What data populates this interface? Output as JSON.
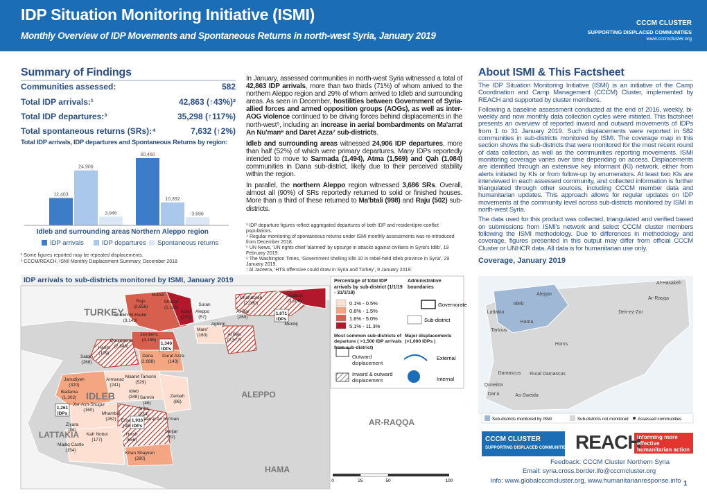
{
  "header": {
    "title": "IDP Situation Monitoring Initiative (ISMI)",
    "subtitle": "Monthly Overview of IDP Movements and Spontaneous Returns in north-west Syria, January 2019",
    "logo_name": "CCCM CLUSTER",
    "logo_tagline": "SUPPORTING DISPLACED COMMUNITIES",
    "logo_url": "www.cccmcluster.org"
  },
  "summary": {
    "heading": "Summary of Findings",
    "rows": [
      {
        "label": "Communities assessed:",
        "value": "582"
      },
      {
        "label": "Total IDP arrivals:¹",
        "value": "42,863 (↑43%)²"
      },
      {
        "label": "Total IDP departures:³",
        "value": "35,298 (↑117%)"
      },
      {
        "label": "Total spontaneous returns (SRs):⁴",
        "value": "7,632 (↑2%)"
      }
    ],
    "chart_title": "Total IDP arrivals, IDP departures and Spontaneous Returns by region:",
    "chart": {
      "type": "bar",
      "categories": [
        "Idleb and surrounding areas",
        "Northern Aleppo region"
      ],
      "series": [
        {
          "name": "IDP arrivals",
          "color": "#3d7cc9",
          "values": [
            12403,
            30460
          ],
          "value_labels": [
            "12,403",
            "30,460"
          ]
        },
        {
          "name": "IDP departures",
          "color": "#a9c8ec",
          "values": [
            24906,
            10392
          ],
          "value_labels": [
            "24,906",
            "10,392"
          ]
        },
        {
          "name": "Spontaneous returns",
          "color": "#dbe7f5",
          "values": [
            3946,
            3686
          ],
          "value_labels": [
            "3,946",
            "3,686"
          ]
        }
      ]
    },
    "footnotes": [
      "¹ Some figures reported may be repeated displacements.",
      "² CCCM/REACH, ISMI Monthly Displacement Summary, December 2018"
    ]
  },
  "narrative": {
    "paragraphs": [
      [
        {
          "text": "In January, assessed communities in north-west Syria witnessed a total of ",
          "bold": false
        },
        {
          "text": "42,863 IDP arrivals",
          "bold": true
        },
        {
          "text": ", more than two thirds (71%) of whom arrived to the northern Aleppo region and 29% of whom arrived to Idleb and surrounding areas. As seen in December, ",
          "bold": false
        },
        {
          "text": "hostilities between Government of Syria-allied forces and armed opposition groups (AOGs), as well as inter-AOG violence",
          "bold": true
        },
        {
          "text": " continued to be driving forces behind displacements in the north-west⁵, including an ",
          "bold": false
        },
        {
          "text": "increase in aerial bombardments on Ma'arrat An Nu'man⁶ and Daret Azza⁷ sub-districts",
          "bold": true
        },
        {
          "text": ".",
          "bold": false
        }
      ],
      [
        {
          "text": "Idleb and surrounding areas",
          "bold": true
        },
        {
          "text": " witnessed ",
          "bold": false
        },
        {
          "text": "24,906 IDP departures",
          "bold": true
        },
        {
          "text": ", more than half (52%) of which were primary departures. Many IDPs reportedly intended to move to ",
          "bold": false
        },
        {
          "text": "Sarmada (1,494), Atma (1,569) and Qah (1,084)",
          "bold": true
        },
        {
          "text": " communities in Dana sub-district, likely due to their perceived stability within the region.",
          "bold": false
        }
      ],
      [
        {
          "text": "In parallel, the ",
          "bold": false
        },
        {
          "text": "northern Aleppo",
          "bold": true
        },
        {
          "text": " region witnessed ",
          "bold": false
        },
        {
          "text": "3,686 SRs",
          "bold": true
        },
        {
          "text": ". Overall, almost all (90%) of SRs reportedly returned to solid or finished houses. More than a third of these returned to ",
          "bold": false
        },
        {
          "text": "Ma'btali (998)",
          "bold": true
        },
        {
          "text": " and ",
          "bold": false
        },
        {
          "text": "Raju (502)",
          "bold": true
        },
        {
          "text": " sub-districts.",
          "bold": false
        }
      ]
    ],
    "footnotes": [
      "³ IDP departure figures reflect aggregated departures of both IDP and resident/pre-conflict populations.",
      "⁴ Regular monitoring of spontaneous returns under ISMI monthly assessments was re-introduced from December 2018.",
      "⁵ UN News, 'UN rights chief 'alarmed' by upsurge in attacks against civilians in Syria's Idlib', 19 February 2019.",
      "⁶ The Washington Times, 'Government shelling kills 10 in rebel-held Idleb province in Syria', 29 January 2019.",
      "⁷ Al Jazeera, 'HTS offensive could draw in Syria and Turkey', 9 January 2019."
    ]
  },
  "about": {
    "heading": "About ISMI & This Factsheet",
    "paragraphs": [
      "The IDP Situation Monitoring Initiative (ISMI) is an initiative of the Camp Coordination and Camp Management (CCCM) Cluster, implemented by REACH and supported by cluster members.",
      "Following a baseline assessment conducted at the end of 2016, weekly, bi-weekly and now monthly data collection cycles were initiated. This factsheet presents an overview of reported inward and outward movements of IDPs from 1 to 31 January 2019. Such displacements were reported in 582 communities in sub-districts monitored by ISMI. The coverage map in this section shows the sub-districts that were monitored for the most recent round of data collection, as well as the communities reporting movements. ISMI monitoring coverage varies over time depending on access. Displacements are identified through an extensive key informant (KI) network, either from alerts initiated by KIs or from follow-up by enumerators. At least two KIs are interviewed in each assessed community, and collected information is further triangulated through other sources, including CCCM member data and humanitarian updates. This approach allows for regular updates on IDP movements at the community level across sub-districts monitored by ISMI in north-west Syria.",
      "The data used for this product was collected, triangulated and verified based on submissions from ISMI's network and select CCCM cluster members following the ISMI methodology. Due to differences in methodology and coverage, figures presented in this output may differ from official CCCM Cluster or UNHCR data. All data is for humanitarian use only."
    ],
    "coverage_title": "Coverage, January 2019",
    "coverage_labels": [
      "Al-Hasakeh",
      "Aleppo",
      "Ar-Raqqa",
      "Idleb",
      "Lattakia",
      "Deir-ez-Zor",
      "Hama",
      "Tartous",
      "Homs",
      "Damascus",
      "Rural Damascus",
      "Quneitra",
      "Dar'a",
      "As-Sweida"
    ],
    "coverage_legend": [
      "Sub-districts monitored by ISMI",
      "Sub-districts not monitored",
      "Assessed communities"
    ]
  },
  "map": {
    "title": "IDP arrivals to sub-districts monitored by ISMI, January 2019",
    "regions": [
      "TURKEY",
      "ALEPPO",
      "IDLEB",
      "AR-RAQQA",
      "LATTAKIA",
      "HAMA"
    ],
    "subdistricts": [
      {
        "name": "Bulbul"
      },
      {
        "name": "Raju",
        "count": "(2,656)"
      },
      {
        "name": "Sharan",
        "count": "(1,116)"
      },
      {
        "name": "Suran"
      },
      {
        "name": "Azaz",
        "count": "(232)"
      },
      {
        "name": "Aleppo",
        "count": "(57)"
      },
      {
        "name": "Al-Rai",
        "count": "(269)"
      },
      {
        "name": "Ghandorah",
        "count": "(2,080)"
      },
      {
        "name": "Jarablus",
        "count": "(3,106)"
      },
      {
        "name": "Sheikh El-Hadid",
        "count": "(3,143)"
      },
      {
        "name": "Aghtrin"
      },
      {
        "name": "Menbij"
      },
      {
        "name": "Mare'",
        "count": "(163)"
      },
      {
        "name": "Jandairis",
        "count": "(4,156)"
      },
      {
        "name": "Al Bab",
        "count": "(2,577)"
      },
      {
        "name": "Qourqeena",
        "count": "(2,848)"
      },
      {
        "name": "Harim",
        "count": "(109)"
      },
      {
        "name": "Salqin",
        "count": "(268)"
      },
      {
        "name": "Dana",
        "count": "(2,688)"
      },
      {
        "name": "Darat Azza",
        "count": "(143)"
      },
      {
        "name": "Janudiyeh",
        "count": "(320)"
      },
      {
        "name": "Armanaz",
        "count": "(241)"
      },
      {
        "name": "Maaret Tamsrin",
        "count": "(529)"
      },
      {
        "name": "Badama",
        "count": "(1,302)"
      },
      {
        "name": "Idleb",
        "count": "(348)"
      },
      {
        "name": "Sarmin",
        "count": "(46)"
      },
      {
        "name": "Zarbah",
        "count": "(86)"
      },
      {
        "name": "Jisr-Ash-Shugur",
        "count": "(160)"
      },
      {
        "name": "Ariha",
        "count": "(234)"
      },
      {
        "name": "Mhambal",
        "count": "(262)"
      },
      {
        "name": "Ehsem",
        "count": "(385)"
      },
      {
        "name": "Maarrat An Nu'man"
      },
      {
        "name": "Ziyara",
        "count": "(86)"
      },
      {
        "name": "Kafr Nobol",
        "count": "(177)"
      },
      {
        "name": "Heish",
        "count": "(656)"
      },
      {
        "name": "Sanjar",
        "count": "(52)"
      },
      {
        "name": "Madiq Castle",
        "count": "(154)"
      },
      {
        "name": "Khan Shaykun",
        "count": "(280)"
      }
    ],
    "callouts": [
      {
        "count": "1,071",
        "unit": "IDPs"
      },
      {
        "count": "1,340",
        "unit": "IDPs"
      },
      {
        "count": "1,261",
        "unit": "IDPs"
      },
      {
        "count": "1,933",
        "unit": "IDPs"
      }
    ],
    "legend": {
      "percent_title": "Percentage of total IDP arrivals by sub-district (1/1/19 - 31/1/19)",
      "admin_title": "Administrative boundaries",
      "classes": [
        {
          "label": "0.1% - 0.5%",
          "color": "#fde0d2"
        },
        {
          "label": "0.6% - 1.5%",
          "color": "#f4a582"
        },
        {
          "label": "1.6% - 5.0%",
          "color": "#d6604d"
        },
        {
          "label": "5.1% - 11.3%",
          "color": "#b2182b"
        }
      ],
      "governorate": "Governorate",
      "subdistrict": "Sub-district",
      "departure_title": "Most common sub-districts of departure ( >1,500 IDP arrivals from sub-district)",
      "major_title": "Major displacements (>1,000 IDPs )",
      "outward": "Outward displacement",
      "external": "External",
      "inout": "Inward & outward displacement",
      "internal": "Internal",
      "scale": [
        "0",
        "25",
        "50",
        "100"
      ]
    }
  },
  "footer": {
    "cccm": "CCCM CLUSTER",
    "cccm_tagline": "SUPPORTING DISPLACED COMMUNITIES",
    "reach": "REACH",
    "reach_tagline": "Informing more effective humanitarian action",
    "feedback": "Feedback: CCCM Cluster Northern Syria",
    "email": "Email: syria.cross.border.ifo@cccmcluster.org",
    "info": "Info: www.globalcccmcluster.org, www.humanitarianresponse.info",
    "page": "1"
  }
}
